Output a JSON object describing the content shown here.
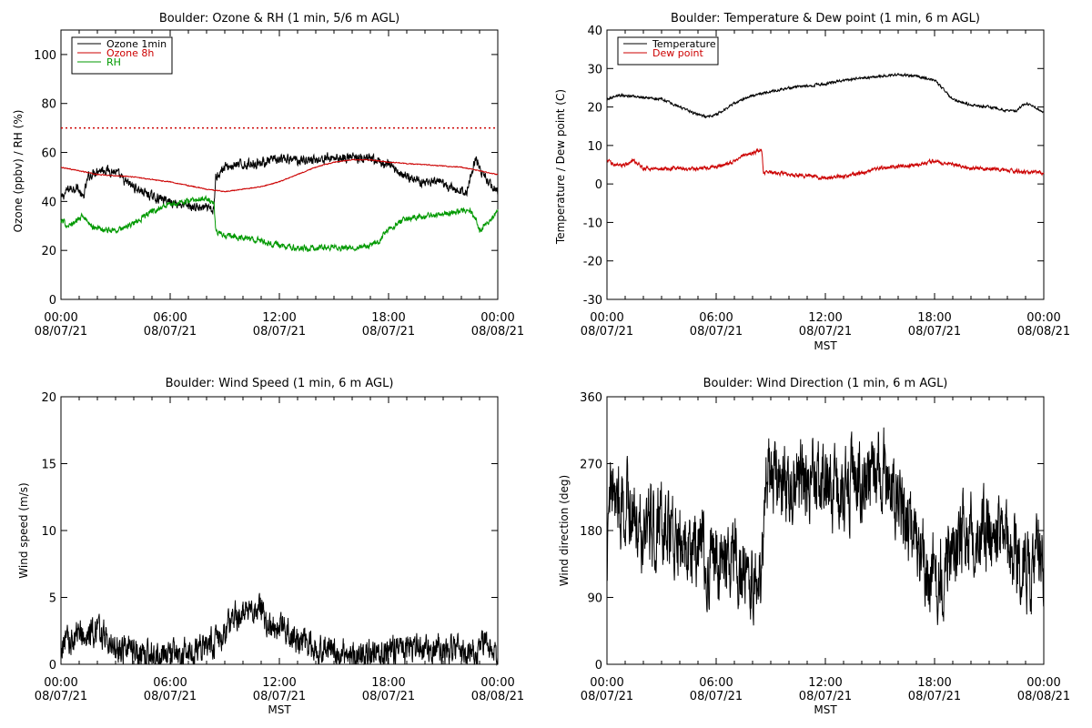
{
  "chart_data": [
    {
      "id": "ozone_rh",
      "type": "line",
      "title": "Boulder: Ozone & RH (1 min, 5/6 m AGL)",
      "ylabel": "Ozone (ppbv) / RH (%)",
      "xlabel": "",
      "xlim": [
        0,
        24
      ],
      "ylim": [
        0,
        110
      ],
      "yticks": [
        0,
        20,
        40,
        60,
        80,
        100
      ],
      "xtick_times": [
        "00:00",
        "06:00",
        "12:00",
        "18:00",
        "00:00"
      ],
      "xtick_dates": [
        "08/07/21",
        "08/07/21",
        "08/07/21",
        "08/07/21",
        "08/08/21"
      ],
      "legend": {
        "position": "top-left",
        "entries": [
          {
            "label": "Ozone 1min",
            "color": "#000000"
          },
          {
            "label": "Ozone 8h",
            "color": "#cc0000"
          },
          {
            "label": "RH",
            "color": "#009900"
          }
        ]
      },
      "reference_line": {
        "y": 70,
        "color": "#cc0000",
        "style": "dotted"
      },
      "series": [
        {
          "name": "Ozone 1min",
          "color": "#000000",
          "noise": 1.6,
          "x": [
            0,
            0.4,
            0.9,
            1.2,
            1.5,
            2,
            2.5,
            3,
            3.5,
            4,
            5,
            6,
            7,
            8,
            8.4,
            8.5,
            8.7,
            9,
            10,
            11,
            12,
            13,
            14,
            15,
            16,
            17,
            18,
            19,
            20,
            21,
            21.5,
            22,
            22.3,
            22.5,
            22.8,
            23,
            23.5,
            24
          ],
          "y": [
            41,
            45,
            46,
            41,
            50,
            53,
            53,
            52,
            48,
            46,
            42,
            40,
            38,
            37,
            36,
            50,
            52,
            54,
            55,
            56,
            57,
            57,
            57,
            58,
            58,
            57,
            55,
            50,
            48,
            47,
            45,
            44,
            44,
            50,
            58,
            53,
            48,
            44
          ]
        },
        {
          "name": "Ozone 8h",
          "color": "#cc0000",
          "noise": 0.15,
          "x": [
            0,
            2,
            4,
            6,
            8,
            9,
            10,
            11,
            12,
            13,
            14,
            15,
            16,
            17,
            18,
            20,
            22,
            24
          ],
          "y": [
            54,
            51,
            50,
            48,
            45,
            44,
            45,
            46,
            48,
            51,
            54,
            56,
            57,
            57,
            56,
            55,
            54,
            51
          ]
        },
        {
          "name": "RH",
          "color": "#009900",
          "noise": 1.0,
          "x": [
            0,
            0.5,
            1,
            1.3,
            1.6,
            2,
            3,
            4,
            5,
            6,
            7,
            8,
            8.4,
            8.5,
            9,
            10,
            11,
            12,
            13,
            14,
            15,
            16,
            17,
            17.5,
            18,
            19,
            20,
            21,
            22,
            22.5,
            22.8,
            23,
            23.5,
            24
          ],
          "y": [
            32,
            30,
            33,
            34,
            30,
            29,
            28,
            31,
            36,
            39,
            40,
            41,
            40,
            28,
            26,
            25,
            24,
            22,
            21,
            21,
            21,
            21,
            22,
            24,
            29,
            33,
            34,
            35,
            36,
            36,
            33,
            28,
            32,
            36
          ]
        }
      ]
    },
    {
      "id": "temp_dew",
      "type": "line",
      "title": "Boulder: Temperature & Dew point (1 min, 6 m AGL)",
      "ylabel": "Temperature / Dew point (C)",
      "xlabel": "MST",
      "xlim": [
        0,
        24
      ],
      "ylim": [
        -30,
        40
      ],
      "yticks": [
        -30,
        -20,
        -10,
        0,
        10,
        20,
        30,
        40
      ],
      "xtick_times": [
        "00:00",
        "06:00",
        "12:00",
        "18:00",
        "00:00"
      ],
      "xtick_dates": [
        "08/07/21",
        "08/07/21",
        "08/07/21",
        "08/07/21",
        "08/08/21"
      ],
      "legend": {
        "position": "top-left",
        "entries": [
          {
            "label": "Temperature",
            "color": "#000000"
          },
          {
            "label": "Dew point",
            "color": "#cc0000"
          }
        ]
      },
      "series": [
        {
          "name": "Temperature",
          "color": "#000000",
          "noise": 0.25,
          "x": [
            0,
            0.5,
            1,
            2,
            3,
            4,
            5,
            5.5,
            6,
            7,
            8,
            9,
            10,
            11,
            12,
            13,
            14,
            15,
            16,
            17,
            18,
            19,
            20,
            21,
            22,
            22.5,
            23,
            23.5,
            24
          ],
          "y": [
            22,
            23,
            23,
            22.5,
            22,
            20,
            18,
            17.5,
            18,
            21,
            23,
            24,
            25,
            25.5,
            26,
            27,
            27.5,
            28,
            28.5,
            28,
            27,
            22,
            20.5,
            20,
            19,
            19,
            21,
            20,
            18.5
          ]
        },
        {
          "name": "Dew point",
          "color": "#cc0000",
          "noise": 0.4,
          "x": [
            0,
            0.5,
            1,
            1.5,
            2,
            3,
            4,
            5,
            6,
            6.5,
            7,
            7.5,
            8,
            8.5,
            8.6,
            9,
            10,
            11,
            12,
            13,
            14,
            15,
            16,
            17,
            18,
            19,
            20,
            21,
            22,
            23,
            24
          ],
          "y": [
            6,
            5,
            5,
            6,
            4,
            4,
            4,
            4,
            4.5,
            5,
            6,
            7.5,
            8,
            9,
            3,
            3,
            2.5,
            2,
            1.5,
            2,
            3,
            4,
            4.5,
            5,
            6,
            5,
            4,
            4,
            3.5,
            3,
            3
          ]
        }
      ]
    },
    {
      "id": "wind_speed",
      "type": "line",
      "title": "Boulder: Wind Speed (1 min, 6 m AGL)",
      "ylabel": "Wind speed (m/s)",
      "xlabel": "MST",
      "xlim": [
        0,
        24
      ],
      "ylim": [
        0,
        20
      ],
      "yticks": [
        0,
        5,
        10,
        15,
        20
      ],
      "xtick_times": [
        "00:00",
        "06:00",
        "12:00",
        "18:00",
        "00:00"
      ],
      "xtick_dates": [
        "08/07/21",
        "08/07/21",
        "08/07/21",
        "08/07/21",
        "08/08/21"
      ],
      "series": [
        {
          "color": "#000000",
          "noise": 0.9,
          "x": [
            0,
            1,
            2,
            2.5,
            3,
            4,
            5,
            6,
            7,
            8,
            9,
            9.5,
            10,
            10.5,
            11,
            11.5,
            12,
            13,
            14,
            15,
            16,
            17,
            18,
            19,
            20,
            21,
            22,
            23,
            23.5,
            24
          ],
          "y": [
            1.5,
            2.0,
            2.5,
            1.8,
            1.2,
            0.9,
            0.6,
            0.5,
            0.8,
            1.3,
            2.3,
            3.5,
            4.2,
            4.0,
            3.8,
            3.2,
            3.0,
            2.0,
            1.3,
            1.0,
            0.8,
            0.7,
            0.9,
            1.1,
            1.2,
            1.1,
            1.0,
            1.2,
            1.6,
            0.8
          ]
        }
      ]
    },
    {
      "id": "wind_dir",
      "type": "line",
      "title": "Boulder: Wind Direction (1 min, 6 m AGL)",
      "ylabel": "Wind direction (deg)",
      "xlabel": "MST",
      "xlim": [
        0,
        24
      ],
      "ylim": [
        0,
        360
      ],
      "yticks": [
        0,
        90,
        180,
        270,
        360
      ],
      "xtick_times": [
        "00:00",
        "06:00",
        "12:00",
        "18:00",
        "00:00"
      ],
      "xtick_dates": [
        "08/07/21",
        "08/07/21",
        "08/07/21",
        "08/07/21",
        "08/08/21"
      ],
      "series": [
        {
          "color": "#000000",
          "noise": 45,
          "x": [
            0,
            0.2,
            0.8,
            1.5,
            2,
            3,
            4,
            5,
            6,
            7,
            7.5,
            8,
            8.5,
            8.7,
            9,
            10,
            11,
            12,
            13,
            14,
            15,
            16,
            17,
            17.5,
            18,
            18.5,
            19,
            20,
            21,
            22,
            23,
            23.5,
            24
          ],
          "y": [
            120,
            230,
            220,
            200,
            180,
            190,
            170,
            150,
            140,
            160,
            110,
            120,
            120,
            250,
            250,
            250,
            245,
            250,
            240,
            250,
            260,
            230,
            160,
            120,
            120,
            130,
            170,
            180,
            170,
            160,
            130,
            140,
            140
          ]
        }
      ]
    }
  ]
}
